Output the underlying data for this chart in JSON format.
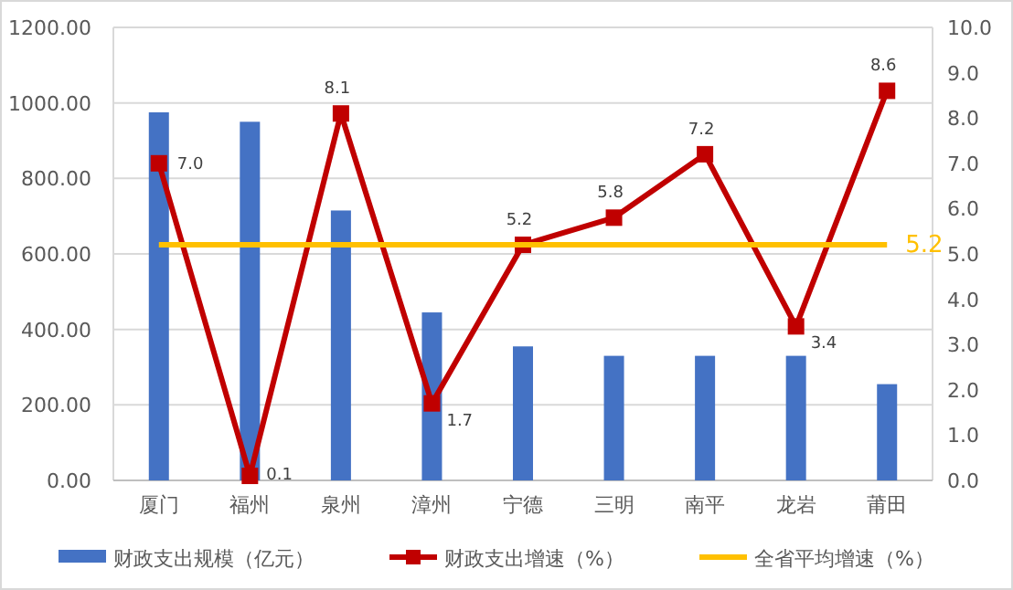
{
  "chart_data": {
    "type": "bar",
    "categories": [
      "厦门",
      "福州",
      "泉州",
      "漳州",
      "宁德",
      "三明",
      "南平",
      "龙岩",
      "莆田"
    ],
    "series": [
      {
        "name": "财政支出规模（亿元）",
        "color": "#4472c4",
        "values": [
          975,
          950,
          715,
          445,
          355,
          330,
          330,
          330,
          255
        ]
      },
      {
        "name": "财政支出增速（%）",
        "type": "line",
        "axis": "y2",
        "color": "#c00000",
        "marker": "square",
        "values": [
          7.0,
          0.1,
          8.1,
          1.7,
          5.2,
          5.8,
          7.2,
          3.4,
          8.6
        ],
        "value_labels": [
          "7.0",
          "0.1",
          "8.1",
          "1.7",
          "5.2",
          "5.8",
          "7.2",
          "3.4",
          "8.6"
        ]
      },
      {
        "name": "全省平均增速（%）",
        "type": "line",
        "axis": "y2",
        "color": "#ffc000",
        "marker": "none",
        "values": [
          5.2,
          5.2,
          5.2,
          5.2,
          5.2,
          5.2,
          5.2,
          5.2,
          5.2
        ],
        "value_labels": [
          null,
          null,
          null,
          null,
          null,
          null,
          null,
          null,
          "5.2"
        ]
      }
    ],
    "ylim": [
      0,
      1200
    ],
    "yticks": [
      {
        "value": 0,
        "label": "0.00"
      },
      {
        "value": 200,
        "label": "200.00"
      },
      {
        "value": 400,
        "label": "400.00"
      },
      {
        "value": 600,
        "label": "600.00"
      },
      {
        "value": 800,
        "label": "800.00"
      },
      {
        "value": 1000,
        "label": "1000.00"
      },
      {
        "value": 1200,
        "label": "1200.00"
      }
    ],
    "y2lim": [
      0,
      10
    ],
    "y2ticks": [
      {
        "value": 0,
        "label": "0.0"
      },
      {
        "value": 1,
        "label": "1.0"
      },
      {
        "value": 2,
        "label": "2.0"
      },
      {
        "value": 3,
        "label": "3.0"
      },
      {
        "value": 4,
        "label": "4.0"
      },
      {
        "value": 5,
        "label": "5.0"
      },
      {
        "value": 6,
        "label": "6.0"
      },
      {
        "value": 7,
        "label": "7.0"
      },
      {
        "value": 8,
        "label": "8.0"
      },
      {
        "value": 9,
        "label": "9.0"
      },
      {
        "value": 10,
        "label": "10.0"
      }
    ],
    "grid": "y",
    "legend": "bottom"
  }
}
